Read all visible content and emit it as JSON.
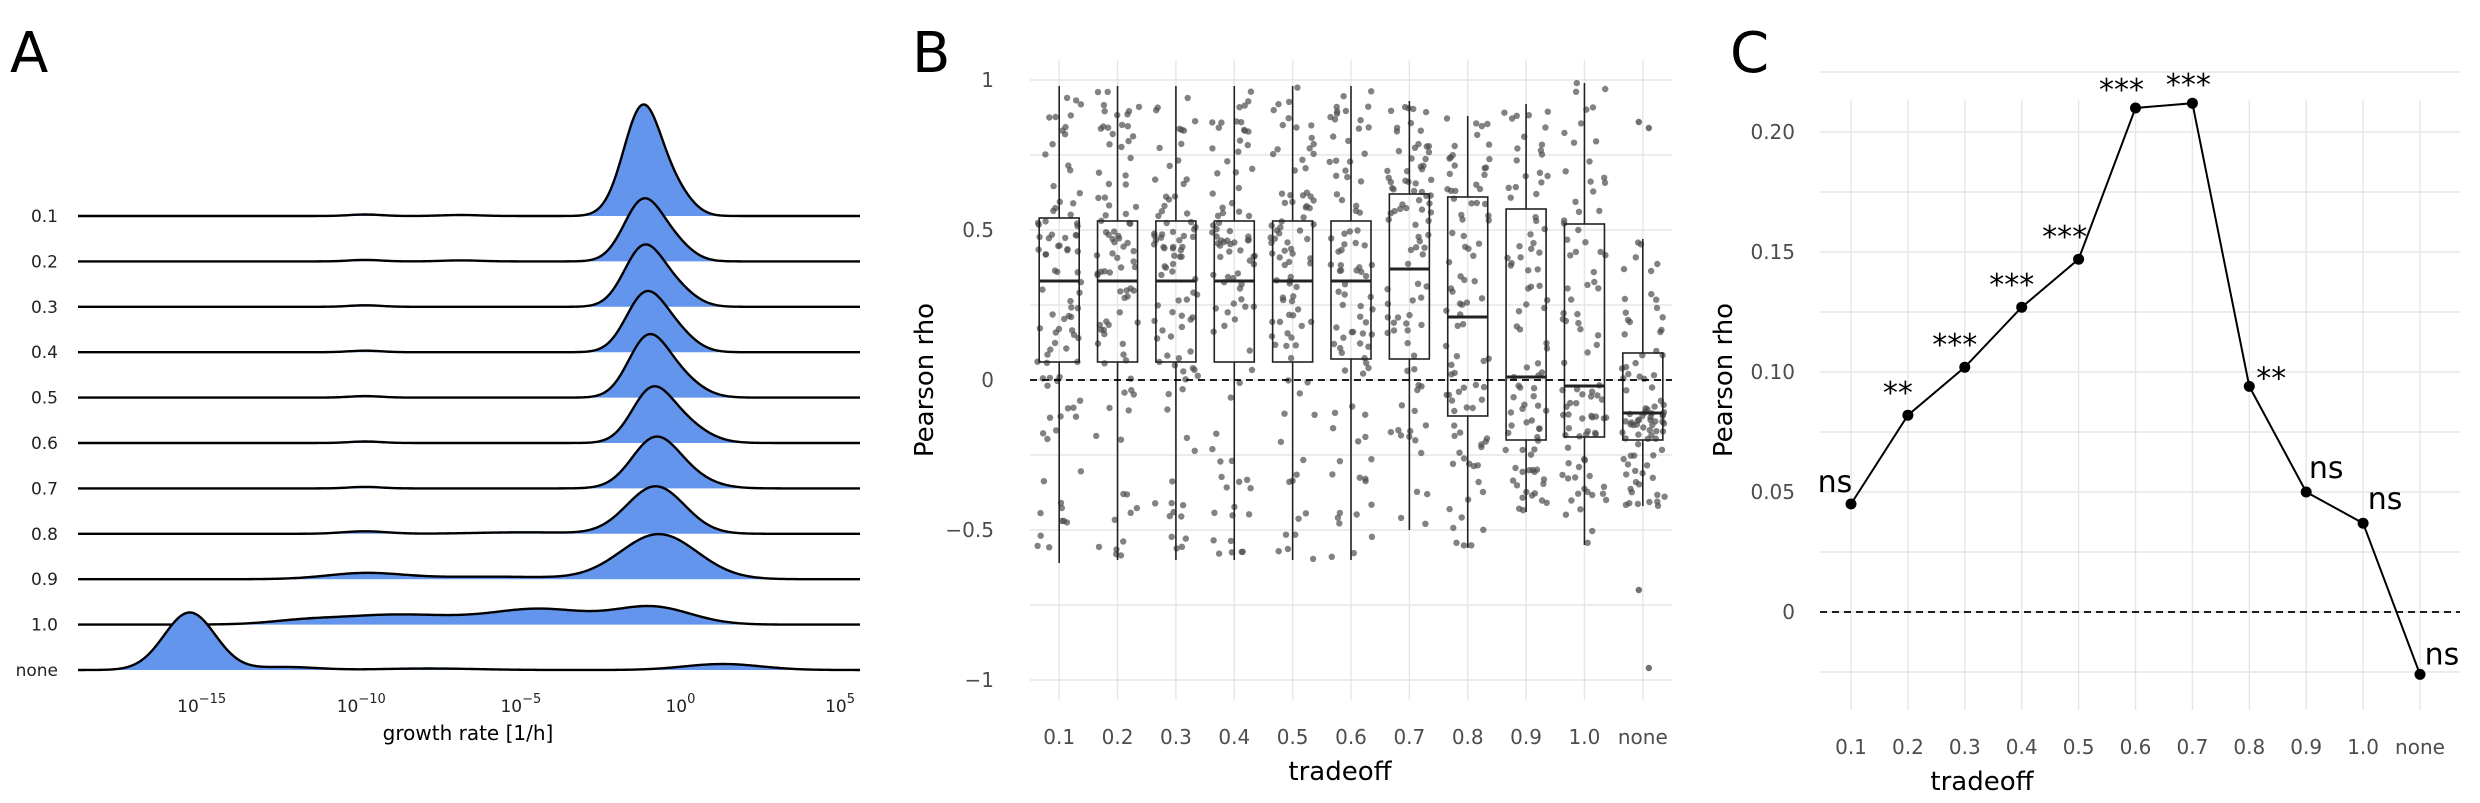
{
  "panels": {
    "A": {
      "label": "A"
    },
    "B": {
      "label": "B"
    },
    "C": {
      "label": "C"
    }
  },
  "chart_data": [
    {
      "panel": "A",
      "type": "area",
      "subtype": "ridgeline density",
      "xlabel": "growth rate [1/h]",
      "x_scale": "log10",
      "x_ticks": [
        "10^-15",
        "10^-10",
        "10^-5",
        "10^0",
        "10^5"
      ],
      "xlim": [
        -19,
        5.5
      ],
      "ridge_labels": [
        "0.1",
        "0.2",
        "0.3",
        "0.4",
        "0.5",
        "0.6",
        "0.7",
        "0.8",
        "0.9",
        "1.0",
        "none"
      ],
      "fill_color": "#6495ED",
      "ridges": [
        {
          "label": "0.1",
          "peaks": [
            [
              -1.3,
              0.6,
              2.2
            ],
            [
              -0.2,
              0.5,
              0.35
            ],
            [
              -10,
              0.5,
              0.03
            ],
            [
              -7,
              0.6,
              0.02
            ]
          ]
        },
        {
          "label": "0.2",
          "peaks": [
            [
              -1.3,
              0.6,
              1.2
            ],
            [
              -0.3,
              0.55,
              0.3
            ],
            [
              -10,
              0.5,
              0.03
            ],
            [
              -7,
              0.6,
              0.02
            ]
          ]
        },
        {
          "label": "0.3",
          "peaks": [
            [
              -1.3,
              0.6,
              1.15
            ],
            [
              -0.3,
              0.6,
              0.35
            ],
            [
              -10,
              0.5,
              0.03
            ]
          ]
        },
        {
          "label": "0.4",
          "peaks": [
            [
              -1.25,
              0.6,
              1.1
            ],
            [
              -0.3,
              0.6,
              0.38
            ],
            [
              -10,
              0.5,
              0.03
            ]
          ]
        },
        {
          "label": "0.5",
          "peaks": [
            [
              -1.2,
              0.6,
              1.05
            ],
            [
              -0.3,
              0.7,
              0.45
            ],
            [
              -10,
              0.5,
              0.03
            ]
          ]
        },
        {
          "label": "0.6",
          "peaks": [
            [
              -1.1,
              0.6,
              0.8
            ],
            [
              -0.3,
              0.8,
              0.5
            ],
            [
              -10,
              0.5,
              0.03
            ]
          ]
        },
        {
          "label": "0.7",
          "peaks": [
            [
              -1.0,
              0.7,
              0.7
            ],
            [
              -0.4,
              0.9,
              0.4
            ],
            [
              -10,
              0.5,
              0.03
            ]
          ]
        },
        {
          "label": "0.8",
          "peaks": [
            [
              -0.9,
              0.9,
              0.95
            ],
            [
              -10,
              0.7,
              0.05
            ],
            [
              -5,
              1.5,
              0.03
            ]
          ]
        },
        {
          "label": "0.9",
          "peaks": [
            [
              -0.8,
              1.2,
              0.9
            ],
            [
              -10,
              1.2,
              0.12
            ],
            [
              -6,
              2.0,
              0.05
            ]
          ]
        },
        {
          "label": "1.0",
          "peaks": [
            [
              -4.5,
              1.5,
              0.3
            ],
            [
              -1.0,
              1.2,
              0.35
            ],
            [
              -9,
              2.0,
              0.2
            ],
            [
              -12,
              1.0,
              0.05
            ]
          ]
        },
        {
          "label": "none",
          "peaks": [
            [
              -15.5,
              0.8,
              1.15
            ],
            [
              -12.5,
              1.0,
              0.06
            ],
            [
              1.2,
              1.2,
              0.12
            ],
            [
              -8,
              1.5,
              0.03
            ]
          ]
        }
      ]
    },
    {
      "panel": "B",
      "type": "box",
      "xlabel": "tradeoff",
      "ylabel": "Pearson rho",
      "ylim": [
        -1.1,
        1.1
      ],
      "y_ticks": [
        1,
        0.5,
        0,
        -0.5,
        -1
      ],
      "y_tick_labels": [
        "1",
        "0.5",
        "0",
        "−0.5",
        "−1"
      ],
      "categories": [
        "0.1",
        "0.2",
        "0.3",
        "0.4",
        "0.5",
        "0.6",
        "0.7",
        "0.8",
        "0.9",
        "1.0",
        "none"
      ],
      "boxes": [
        {
          "category": "0.1",
          "q1": 0.06,
          "median": 0.33,
          "q3": 0.54,
          "whisker_low": -0.61,
          "whisker_high": 0.98
        },
        {
          "category": "0.2",
          "q1": 0.06,
          "median": 0.33,
          "q3": 0.53,
          "whisker_low": -0.6,
          "whisker_high": 0.98
        },
        {
          "category": "0.3",
          "q1": 0.06,
          "median": 0.33,
          "q3": 0.53,
          "whisker_low": -0.6,
          "whisker_high": 0.98
        },
        {
          "category": "0.4",
          "q1": 0.06,
          "median": 0.33,
          "q3": 0.53,
          "whisker_low": -0.6,
          "whisker_high": 0.98
        },
        {
          "category": "0.5",
          "q1": 0.06,
          "median": 0.33,
          "q3": 0.53,
          "whisker_low": -0.6,
          "whisker_high": 0.98
        },
        {
          "category": "0.6",
          "q1": 0.07,
          "median": 0.33,
          "q3": 0.53,
          "whisker_low": -0.6,
          "whisker_high": 0.98
        },
        {
          "category": "0.7",
          "q1": 0.07,
          "median": 0.37,
          "q3": 0.62,
          "whisker_low": -0.5,
          "whisker_high": 0.93
        },
        {
          "category": "0.8",
          "q1": -0.12,
          "median": 0.21,
          "q3": 0.61,
          "whisker_low": -0.56,
          "whisker_high": 0.88
        },
        {
          "category": "0.9",
          "q1": -0.2,
          "median": 0.01,
          "q3": 0.57,
          "whisker_low": -0.44,
          "whisker_high": 0.92
        },
        {
          "category": "1.0",
          "q1": -0.19,
          "median": -0.02,
          "q3": 0.52,
          "whisker_low": -0.55,
          "whisker_high": 0.99
        },
        {
          "category": "none",
          "q1": -0.2,
          "median": -0.11,
          "q3": 0.09,
          "whisker_low": -0.42,
          "whisker_high": 0.47
        }
      ],
      "outliers": [
        {
          "category": "none",
          "values": [
            0.86,
            0.84,
            -0.7,
            -0.96
          ]
        }
      ],
      "reference_line": 0,
      "jitter_points_per_category": 90,
      "point_color": "#4d4d4d"
    },
    {
      "panel": "C",
      "type": "line",
      "xlabel": "tradeoff",
      "ylabel": "Pearson rho",
      "ylim": [
        -0.03,
        0.225
      ],
      "y_ticks": [
        0,
        0.05,
        0.1,
        0.15,
        0.2
      ],
      "y_tick_labels": [
        "0",
        "0.05",
        "0.10",
        "0.15",
        "0.20"
      ],
      "categories": [
        "0.1",
        "0.2",
        "0.3",
        "0.4",
        "0.5",
        "0.6",
        "0.7",
        "0.8",
        "0.9",
        "1.0",
        "none"
      ],
      "values": [
        0.045,
        0.082,
        0.102,
        0.127,
        0.147,
        0.21,
        0.212,
        0.094,
        0.05,
        0.037,
        -0.026
      ],
      "significance": [
        "ns",
        "**",
        "***",
        "***",
        "***",
        "***",
        "***",
        "**",
        "ns",
        "ns",
        "ns"
      ],
      "reference_line": 0
    }
  ]
}
